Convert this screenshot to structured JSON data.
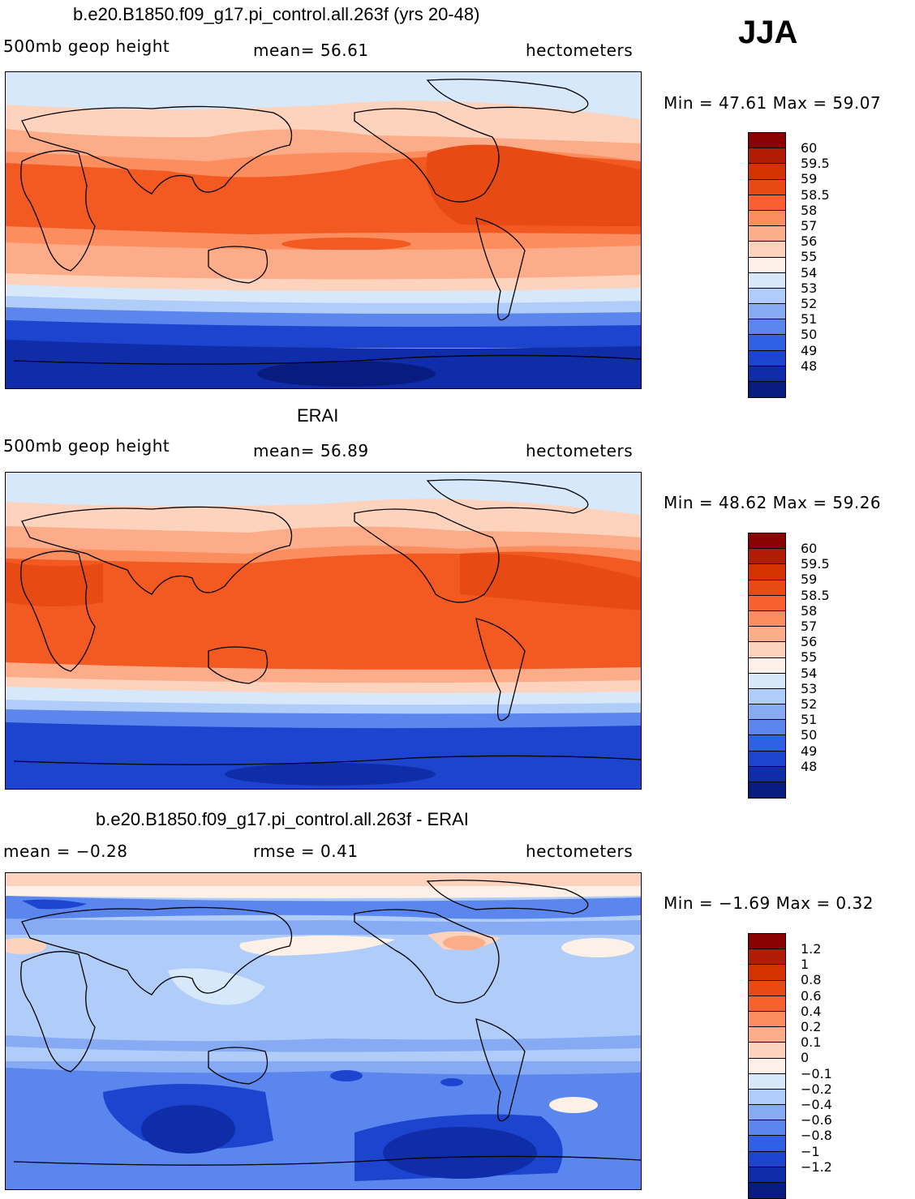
{
  "season": "JJA",
  "panels": [
    {
      "title": "b.e20.B1850.f09_g17.pi_control.all.263f (yrs 20-48)",
      "left_label": "500mb  geop  height",
      "mid_label": "mean=   56.61",
      "units": "hectometers",
      "minmax": "Min =   47.61  Max =   59.07",
      "colorbar": {
        "labels": [
          "60",
          "59.5",
          "59",
          "58.5",
          "58",
          "57",
          "56",
          "55",
          "54",
          "53",
          "52",
          "51",
          "50",
          "49",
          "48"
        ],
        "colors": [
          "#8b0000",
          "#b11c05",
          "#d43300",
          "#e84a14",
          "#f86030",
          "#fb8d5e",
          "#fcac89",
          "#fdd3bd",
          "#fdf0e6",
          "#d8e8fb",
          "#b0ccf8",
          "#86aaf4",
          "#5a86ee",
          "#3060e6",
          "#1c44cf",
          "#0f2da8",
          "#081c80"
        ]
      },
      "map_palette": {
        "ice": "#d8e8fb",
        "pale": "#fdd3bd",
        "mid": "#fcac89",
        "warm": "#fb8d5e",
        "hot": "#f35a22",
        "core": "#e84a14",
        "cool1": "#b0ccf8",
        "cool2": "#5a86ee",
        "cool3": "#1c44cf",
        "cold": "#0f2da8",
        "deep": "#081c80"
      }
    },
    {
      "title": "ERAI",
      "left_label": "500mb  geop  height",
      "mid_label": "mean=   56.89",
      "units": "hectometers",
      "minmax": "Min =   48.62  Max =   59.26",
      "colorbar": {
        "labels": [
          "60",
          "59.5",
          "59",
          "58.5",
          "58",
          "57",
          "56",
          "55",
          "54",
          "53",
          "52",
          "51",
          "50",
          "49",
          "48"
        ],
        "colors": [
          "#8b0000",
          "#b11c05",
          "#d43300",
          "#e84a14",
          "#f86030",
          "#fb8d5e",
          "#fcac89",
          "#fdd3bd",
          "#fdf0e6",
          "#d8e8fb",
          "#b0ccf8",
          "#86aaf4",
          "#5a86ee",
          "#3060e6",
          "#1c44cf",
          "#0f2da8",
          "#081c80"
        ]
      },
      "map_palette": {
        "ice": "#d8e8fb",
        "pale": "#fdd3bd",
        "mid": "#fcac89",
        "warm": "#fb8d5e",
        "hot": "#f35a22",
        "core": "#e84a14",
        "cool1": "#b0ccf8",
        "cool2": "#5a86ee",
        "cool3": "#1c44cf",
        "cold": "#0f2da8",
        "deep": "#081c80"
      }
    },
    {
      "title": "b.e20.B1850.f09_g17.pi_control.all.263f - ERAI",
      "left_label": "mean =   −0.28",
      "mid_label": "rmse =     0.41",
      "units": "hectometers",
      "minmax": "Min =   −1.69  Max =      0.32",
      "colorbar": {
        "labels": [
          "1.2",
          "1",
          "0.8",
          "0.6",
          "0.4",
          "0.2",
          "0.1",
          "0",
          "−0.1",
          "−0.2",
          "−0.4",
          "−0.6",
          "−0.8",
          "−1",
          "−1.2"
        ],
        "colors": [
          "#8b0000",
          "#b11c05",
          "#d43300",
          "#e84a14",
          "#f86030",
          "#fb8d5e",
          "#fcac89",
          "#fdd3bd",
          "#fdf0e6",
          "#d8e8fb",
          "#b0ccf8",
          "#86aaf4",
          "#5a86ee",
          "#3060e6",
          "#1c44cf",
          "#0f2da8",
          "#081c80"
        ]
      },
      "map_palette": {
        "base": "#b0ccf8",
        "light": "#d8e8fb",
        "mid": "#86aaf4",
        "blue": "#5a86ee",
        "dark": "#1c44cf",
        "deep": "#0f2da8",
        "warm": "#fdd3bd",
        "warm2": "#fcac89",
        "cream": "#fdf0e6"
      }
    }
  ]
}
